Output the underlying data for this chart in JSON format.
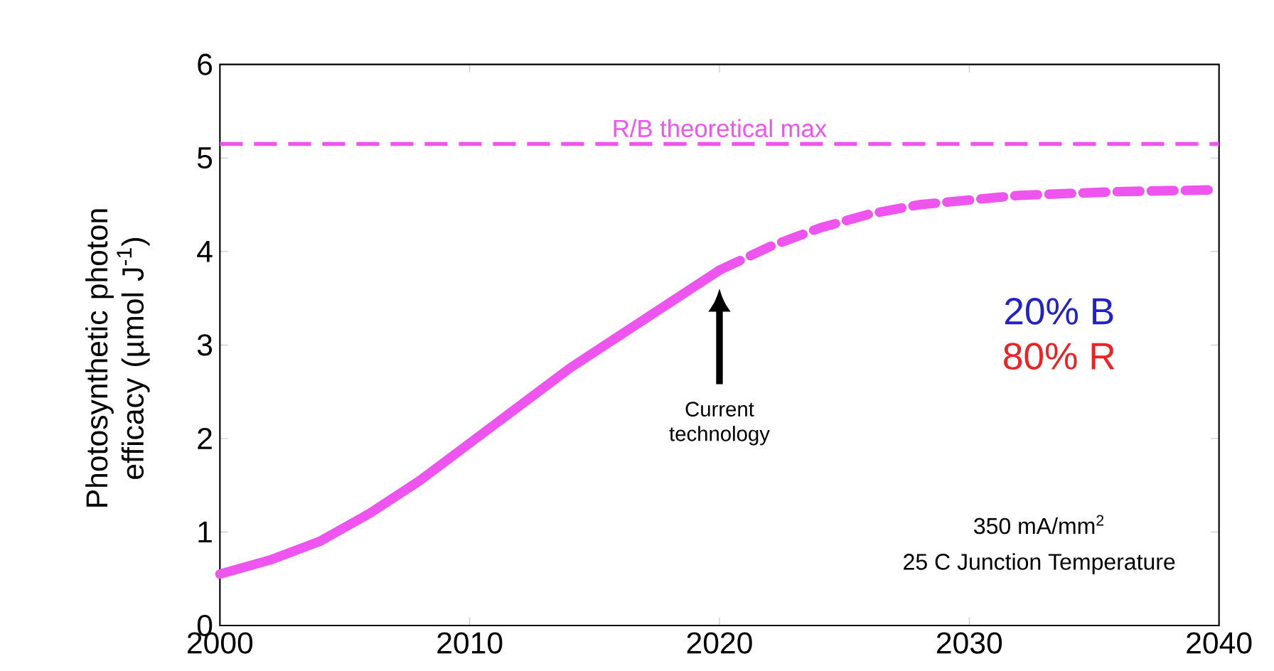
{
  "chart_data": {
    "type": "line",
    "ylabel": "Photosynthetic photon efficacy (µmol J$^{-1}$)",
    "xlim": [
      2000,
      2040
    ],
    "xticks": [
      2000,
      2010,
      2020,
      2030,
      2040
    ],
    "ylim": [
      0,
      6
    ],
    "yticks": [
      0,
      1,
      2,
      3,
      4,
      5,
      6
    ],
    "grid": false,
    "series": [
      {
        "color": "#ee55ee",
        "line_style": "solid",
        "x": [
          2000,
          2002,
          2004,
          2006,
          2008,
          2010,
          2012,
          2014,
          2016,
          2018,
          2020
        ],
        "values": [
          0.55,
          0.7,
          0.9,
          1.2,
          1.55,
          1.95,
          2.35,
          2.75,
          3.1,
          3.45,
          3.8
        ]
      },
      {
        "color": "#ee55ee",
        "line_style": "dashed",
        "x": [
          2020,
          2022,
          2024,
          2026,
          2028,
          2030,
          2032,
          2034,
          2036,
          2038,
          2040
        ],
        "values": [
          3.8,
          4.05,
          4.25,
          4.4,
          4.5,
          4.55,
          4.6,
          4.62,
          4.64,
          4.65,
          4.66
        ]
      }
    ],
    "ref_lines": [
      {
        "axis": "y",
        "value": 5.15,
        "label": "R/B theoretical max",
        "color": "#ee55ee",
        "line_style": "dashed"
      }
    ],
    "annotations": [
      "Current technology",
      "20% B",
      "80% R",
      "350 mA/mm$^{2}$",
      "25 C Junction Temperature"
    ]
  }
}
